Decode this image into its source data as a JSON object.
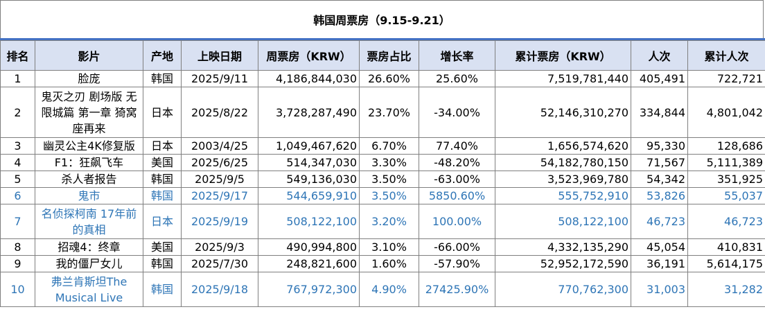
{
  "title": "韩国周票房（9.15-9.21）",
  "columns": [
    "排名",
    "影片",
    "产地",
    "上映日期",
    "周票房（KRW）",
    "票房占比",
    "增长率",
    "累计票房（KRW）",
    "人次",
    "累计人次"
  ],
  "rows": [
    {
      "rank": "1",
      "film": "脸庞",
      "origin": "韩国",
      "date": "2025/9/11",
      "weekly": "4,186,844,030",
      "share": "26.60%",
      "growth": "25.60%",
      "total": "7,519,781,440",
      "admissions": "405,491",
      "total_admissions": "722,721"
    },
    {
      "rank": "2",
      "film": "鬼灭之刃 剧场版 无限城篇 第一章 猗窝座再来",
      "origin": "日本",
      "date": "2025/8/22",
      "weekly": "3,728,287,490",
      "share": "23.70%",
      "growth": "-34.00%",
      "total": "52,146,310,270",
      "admissions": "334,844",
      "total_admissions": "4,801,042"
    },
    {
      "rank": "3",
      "film": "幽灵公主4K修复版",
      "origin": "日本",
      "date": "2003/4/25",
      "weekly": "1,049,467,620",
      "share": "6.70%",
      "growth": "77.40%",
      "total": "1,656,574,620",
      "admissions": "95,330",
      "total_admissions": "128,686"
    },
    {
      "rank": "4",
      "film": "F1：狂飙飞车",
      "origin": "美国",
      "date": "2025/6/25",
      "weekly": "514,347,030",
      "share": "3.30%",
      "growth": "-48.20%",
      "total": "54,182,780,150",
      "admissions": "71,567",
      "total_admissions": "5,111,389"
    },
    {
      "rank": "5",
      "film": "杀人者报告",
      "origin": "韩国",
      "date": "2025/9/5",
      "weekly": "549,136,030",
      "share": "3.50%",
      "growth": "-63.00%",
      "total": "3,523,969,780",
      "admissions": "54,342",
      "total_admissions": "351,925"
    },
    {
      "rank": "6",
      "film": "鬼市",
      "origin": "韩国",
      "date": "2025/9/17",
      "weekly": "544,659,910",
      "share": "3.50%",
      "growth": "5850.60%",
      "total": "555,752,910",
      "admissions": "53,826",
      "total_admissions": "55,037"
    },
    {
      "rank": "7",
      "film": "名侦探柯南 17年前的真相",
      "origin": "日本",
      "date": "2025/9/19",
      "weekly": "508,122,100",
      "share": "3.20%",
      "growth": "100.00%",
      "total": "508,122,100",
      "admissions": "46,723",
      "total_admissions": "46,723"
    },
    {
      "rank": "8",
      "film": "招魂4：终章",
      "origin": "美国",
      "date": "2025/9/3",
      "weekly": "490,994,800",
      "share": "3.10%",
      "growth": "-66.00%",
      "total": "4,332,135,290",
      "admissions": "45,054",
      "total_admissions": "410,831"
    },
    {
      "rank": "9",
      "film": "我的僵尸女儿",
      "origin": "韩国",
      "date": "2025/7/30",
      "weekly": "248,821,600",
      "share": "1.60%",
      "growth": "-57.90%",
      "total": "52,952,172,590",
      "admissions": "36,191",
      "total_admissions": "5,614,175"
    },
    {
      "rank": "10",
      "film": "弗兰肯斯坦The Musical Live",
      "origin": "韩国",
      "date": "2025/9/18",
      "weekly": "767,972,300",
      "share": "4.90%",
      "growth": "27425.90%",
      "total": "770,762,300",
      "admissions": "31,003",
      "total_admissions": "31,282"
    }
  ],
  "highlight_color": "#2e75b6",
  "highlight_note": "new releases shown in blue"
}
